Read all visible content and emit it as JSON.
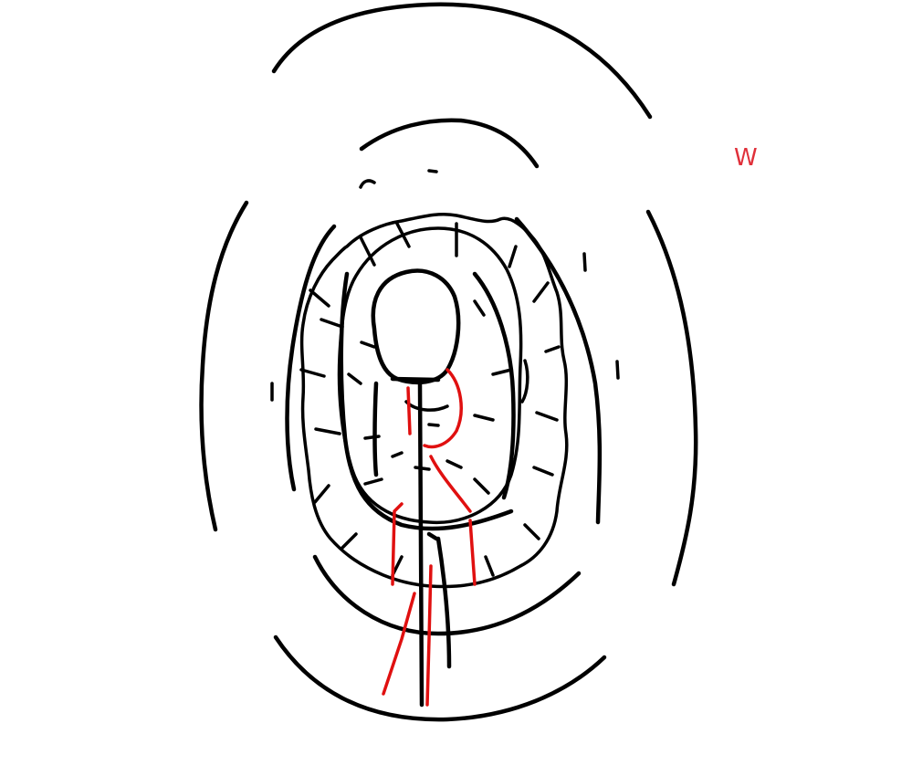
{
  "annotation": {
    "letter": "W",
    "color": "#e0303a"
  },
  "colors": {
    "ink": "#000000",
    "accent": "#e01010",
    "background": "#ffffff"
  }
}
